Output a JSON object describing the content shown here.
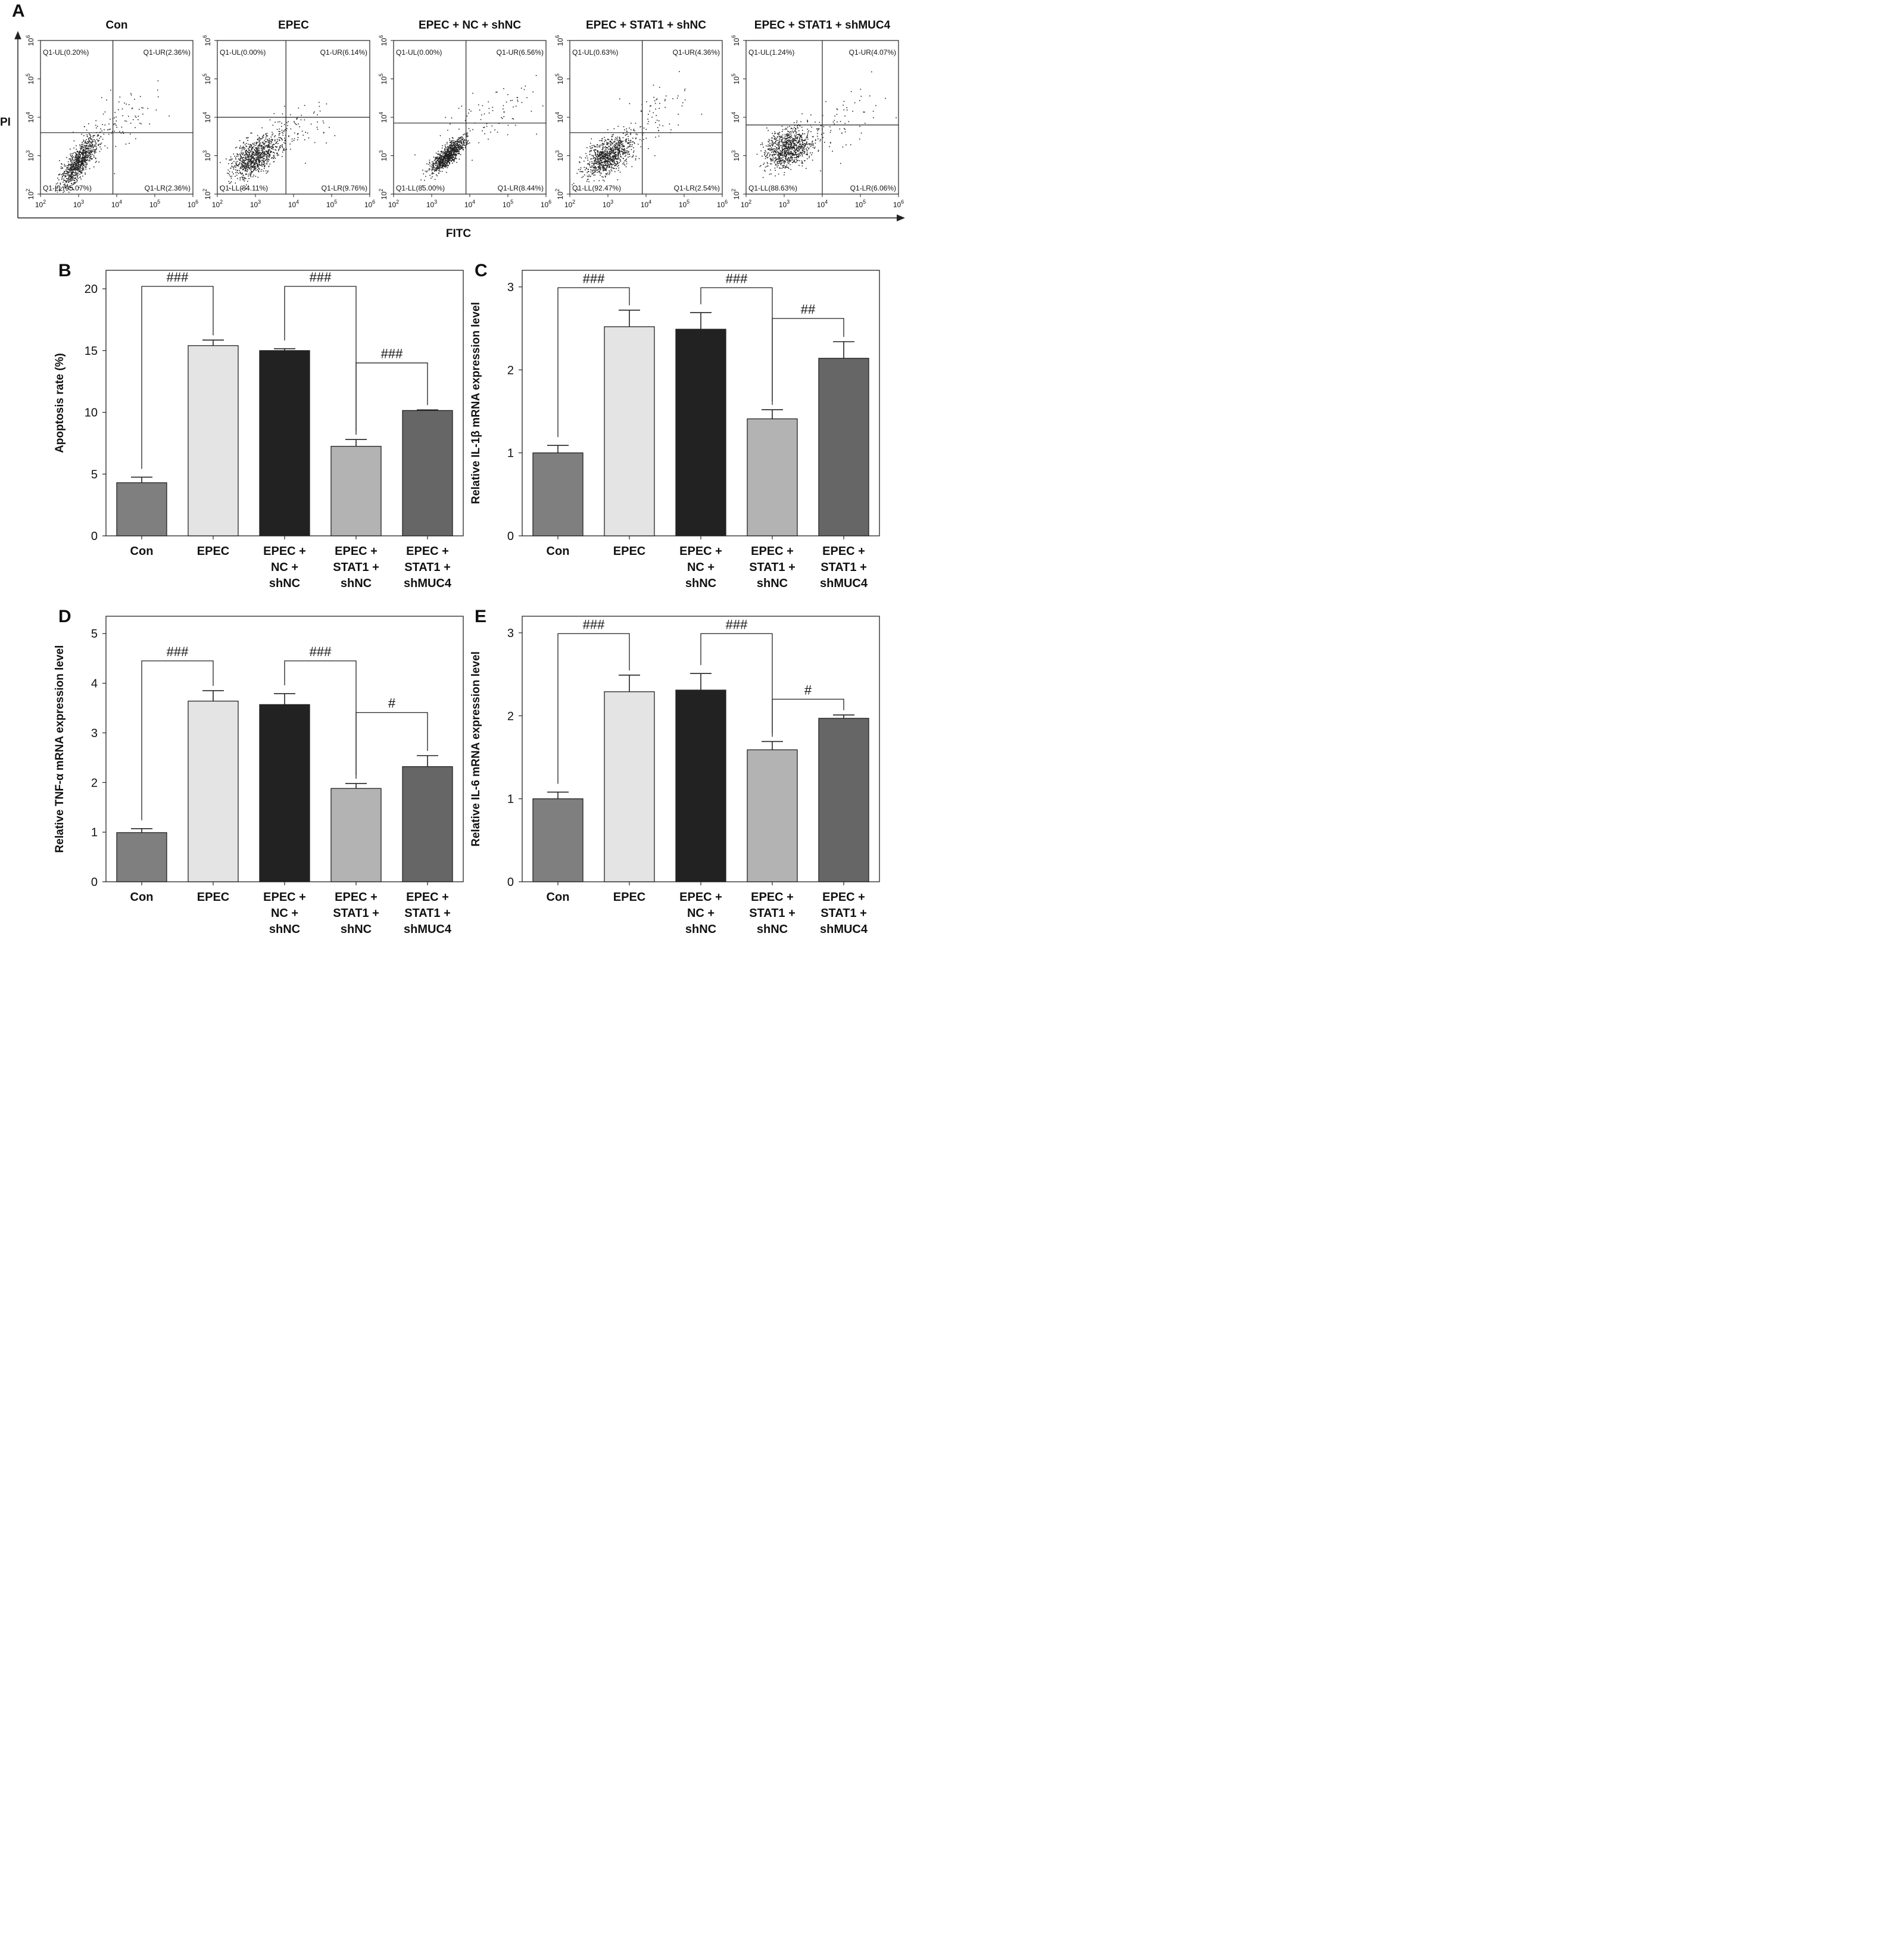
{
  "flow": {
    "panel_label": "A",
    "xlabel": "FITC",
    "ylabel": "PI",
    "tick_labels": [
      "2",
      "3",
      "4",
      "5",
      "6"
    ],
    "plots": [
      {
        "title": "Con",
        "quadrants": {
          "UL": "Q1-UL(0.20%)",
          "UR": "Q1-UR(2.36%)",
          "LL": "Q1-LL(95.07%)",
          "LR": "Q1-LR(2.36%)"
        },
        "gate": {
          "x": 3.9,
          "y": 3.6
        }
      },
      {
        "title": "EPEC",
        "quadrants": {
          "UL": "Q1-UL(0.00%)",
          "UR": "Q1-UR(6.14%)",
          "LL": "Q1-LL(84.11%)",
          "LR": "Q1-LR(9.76%)"
        },
        "gate": {
          "x": 3.8,
          "y": 4.0
        }
      },
      {
        "title": "EPEC + NC + shNC",
        "quadrants": {
          "UL": "Q1-UL(0.00%)",
          "UR": "Q1-UR(6.56%)",
          "LL": "Q1-LL(85.00%)",
          "LR": "Q1-LR(8.44%)"
        },
        "gate": {
          "x": 3.9,
          "y": 3.85
        }
      },
      {
        "title": "EPEC + STAT1 + shNC",
        "quadrants": {
          "UL": "Q1-UL(0.63%)",
          "UR": "Q1-UR(4.36%)",
          "LL": "Q1-LL(92.47%)",
          "LR": "Q1-LR(2.54%)"
        },
        "gate": {
          "x": 3.9,
          "y": 3.6
        }
      },
      {
        "title": "EPEC + STAT1 + shMUC4",
        "quadrants": {
          "UL": "Q1-UL(1.24%)",
          "UR": "Q1-UR(4.07%)",
          "LL": "Q1-LL(88.63%)",
          "LR": "Q1-LR(6.06%)"
        },
        "gate": {
          "x": 4.0,
          "y": 3.8
        }
      }
    ]
  },
  "colors": [
    "#7f7f7f",
    "#e4e4e4",
    "#222222",
    "#b3b3b3",
    "#666666"
  ],
  "chart_data": [
    {
      "panel": "B",
      "type": "bar",
      "categories": [
        "Con",
        "EPEC",
        "EPEC + NC + shNC",
        "EPEC + STAT1 + shNC",
        "EPEC + STAT1 + shMUC4"
      ],
      "category_lines": [
        [
          "Con"
        ],
        [
          "EPEC"
        ],
        [
          "EPEC +",
          "NC +",
          "shNC"
        ],
        [
          "EPEC +",
          "STAT1 +",
          "shNC"
        ],
        [
          "EPEC +",
          "STAT1 +",
          "shMUC4"
        ]
      ],
      "values": [
        4.3,
        15.4,
        15.0,
        7.25,
        10.15
      ],
      "errors": [
        0.45,
        0.45,
        0.15,
        0.55,
        0.05
      ],
      "ylabel": "Apoptosis rate (%)",
      "ylim": [
        0,
        21.5
      ],
      "yticks": [
        0,
        5,
        10,
        15,
        20
      ],
      "significance": [
        {
          "from": 0,
          "to": 1,
          "label": "###",
          "level": 20.2
        },
        {
          "from": 2,
          "to": 3,
          "label": "###",
          "level": 20.2
        },
        {
          "from": 3,
          "to": 4,
          "label": "###",
          "level": 14.0
        }
      ]
    },
    {
      "panel": "C",
      "type": "bar",
      "categories": [
        "Con",
        "EPEC",
        "EPEC + NC + shNC",
        "EPEC + STAT1 + shNC",
        "EPEC + STAT1 + shMUC4"
      ],
      "category_lines": [
        [
          "Con"
        ],
        [
          "EPEC"
        ],
        [
          "EPEC +",
          "NC +",
          "shNC"
        ],
        [
          "EPEC +",
          "STAT1 +",
          "shNC"
        ],
        [
          "EPEC +",
          "STAT1 +",
          "shMUC4"
        ]
      ],
      "values": [
        1.0,
        2.52,
        2.49,
        1.41,
        2.14
      ],
      "errors": [
        0.09,
        0.2,
        0.2,
        0.11,
        0.2
      ],
      "ylabel": "Relative IL-1β mRNA expression level",
      "ylim": [
        0,
        3.2
      ],
      "yticks": [
        0,
        1,
        2,
        3
      ],
      "significance": [
        {
          "from": 0,
          "to": 1,
          "label": "###",
          "level": 2.99
        },
        {
          "from": 2,
          "to": 3,
          "label": "###",
          "level": 2.99
        },
        {
          "from": 3,
          "to": 4,
          "label": "##",
          "level": 2.62
        }
      ]
    },
    {
      "panel": "D",
      "type": "bar",
      "categories": [
        "Con",
        "EPEC",
        "EPEC + NC + shNC",
        "EPEC + STAT1 + shNC",
        "EPEC + STAT1 + shMUC4"
      ],
      "category_lines": [
        [
          "Con"
        ],
        [
          "EPEC"
        ],
        [
          "EPEC +",
          "NC +",
          "shNC"
        ],
        [
          "EPEC +",
          "STAT1 +",
          "shNC"
        ],
        [
          "EPEC +",
          "STAT1 +",
          "shMUC4"
        ]
      ],
      "values": [
        0.99,
        3.64,
        3.57,
        1.88,
        2.32
      ],
      "errors": [
        0.08,
        0.21,
        0.22,
        0.1,
        0.22
      ],
      "ylabel": "Relative TNF-α mRNA expression level",
      "ylim": [
        0,
        5.35
      ],
      "yticks": [
        0,
        1,
        2,
        3,
        4,
        5
      ],
      "significance": [
        {
          "from": 0,
          "to": 1,
          "label": "###",
          "level": 4.45
        },
        {
          "from": 2,
          "to": 3,
          "label": "###",
          "level": 4.45
        },
        {
          "from": 3,
          "to": 4,
          "label": "#",
          "level": 3.41
        }
      ]
    },
    {
      "panel": "E",
      "type": "bar",
      "categories": [
        "Con",
        "EPEC",
        "EPEC + NC + shNC",
        "EPEC + STAT1 + shNC",
        "EPEC + STAT1 + shMUC4"
      ],
      "category_lines": [
        [
          "Con"
        ],
        [
          "EPEC"
        ],
        [
          "EPEC +",
          "NC +",
          "shNC"
        ],
        [
          "EPEC +",
          "STAT1 +",
          "shNC"
        ],
        [
          "EPEC +",
          "STAT1 +",
          "shMUC4"
        ]
      ],
      "values": [
        1.0,
        2.29,
        2.31,
        1.59,
        1.97
      ],
      "errors": [
        0.08,
        0.2,
        0.2,
        0.1,
        0.04
      ],
      "ylabel": "Relative IL-6 mRNA expression level",
      "ylim": [
        0,
        3.2
      ],
      "yticks": [
        0,
        1,
        2,
        3
      ],
      "significance": [
        {
          "from": 0,
          "to": 1,
          "label": "###",
          "level": 2.99
        },
        {
          "from": 2,
          "to": 3,
          "label": "###",
          "level": 2.99
        },
        {
          "from": 3,
          "to": 4,
          "label": "#",
          "level": 2.2
        }
      ]
    }
  ]
}
